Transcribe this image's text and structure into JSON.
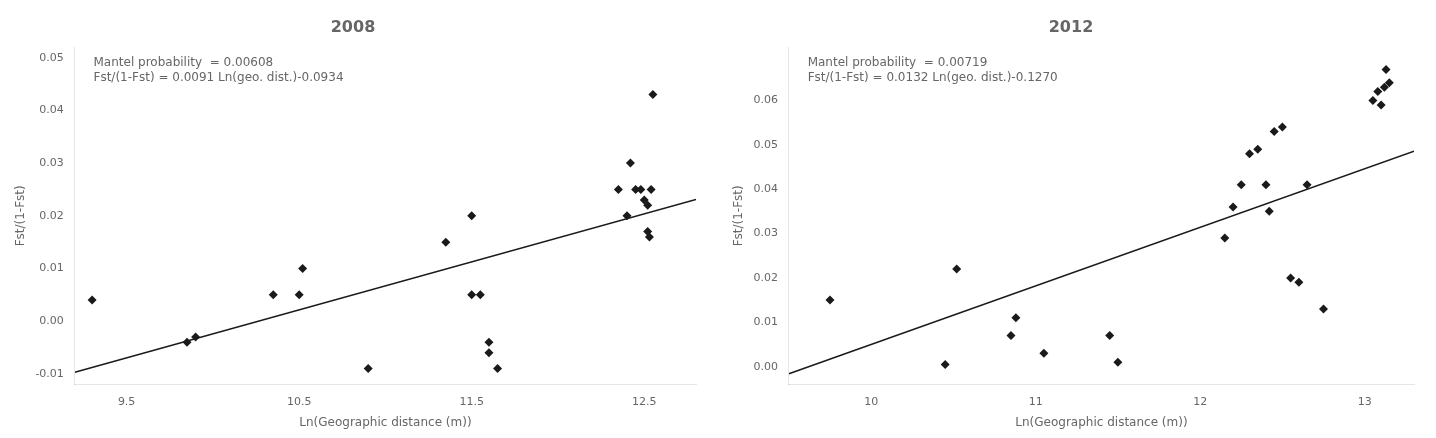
{
  "chart_data": [
    {
      "type": "scatter",
      "title": "2008",
      "xlabel": "Ln(Geographic distance (m))",
      "ylabel": "Fst/(1-Fst)",
      "annotations": [
        "Mantel probability  = 0.00608",
        "Fst/(1-Fst) = 0.0091 Ln(geo. dist.)-0.0934"
      ],
      "xlim": [
        9.2,
        12.8
      ],
      "ylim": [
        -0.012,
        0.052
      ],
      "xticks": [
        9.5,
        10.5,
        11.5,
        12.5
      ],
      "yticks": [
        -0.01,
        {
          "value": 0,
          "label": "0.00"
        },
        0.01,
        0.02,
        0.03,
        0.04,
        0.05
      ],
      "grid": false,
      "series": [
        {
          "type": "scatter",
          "color": "#1a1a1a",
          "marker": "diamond",
          "x": [
            9.3,
            9.85,
            9.9,
            10.35,
            10.5,
            10.52,
            10.9,
            11.35,
            11.5,
            11.5,
            11.55,
            11.6,
            11.6,
            11.65,
            12.35,
            12.4,
            12.42,
            12.45,
            12.48,
            12.5,
            12.52,
            12.52,
            12.53,
            12.54,
            12.55
          ],
          "values": [
            0.004,
            -0.004,
            -0.003,
            0.005,
            0.005,
            0.01,
            -0.009,
            0.015,
            0.02,
            0.005,
            0.005,
            -0.004,
            -0.006,
            -0.009,
            0.025,
            0.02,
            0.03,
            0.025,
            0.025,
            0.023,
            0.022,
            0.017,
            0.016,
            0.025,
            0.043
          ]
        },
        {
          "type": "line",
          "color": "#1a1a1a",
          "line_style": "solid",
          "x": [
            9.2,
            12.8
          ],
          "values": [
            -0.00968,
            0.02308
          ]
        }
      ]
    },
    {
      "type": "scatter",
      "title": "2012",
      "xlabel": "Ln(Geographic distance (m))",
      "ylabel": "Fst/(1-Fst)",
      "annotations": [
        "Mantel probability  = 0.00719",
        "Fst/(1-Fst) = 0.0132 Ln(geo. dist.)-0.1270"
      ],
      "xlim": [
        9.5,
        13.3
      ],
      "ylim": [
        -0.004,
        0.072
      ],
      "xticks": [
        10,
        11,
        12,
        13
      ],
      "yticks": [
        {
          "value": 0,
          "label": "0.00"
        },
        0.01,
        0.02,
        0.03,
        0.04,
        0.05,
        0.06
      ],
      "grid": false,
      "series": [
        {
          "type": "scatter",
          "color": "#1a1a1a",
          "marker": "diamond",
          "x": [
            9.75,
            10.45,
            10.52,
            10.85,
            10.88,
            11.05,
            11.45,
            11.5,
            12.15,
            12.2,
            12.25,
            12.3,
            12.35,
            12.4,
            12.42,
            12.45,
            12.5,
            12.55,
            12.6,
            12.65,
            12.75,
            13.05,
            13.08,
            13.1,
            13.12,
            13.13,
            13.15
          ],
          "values": [
            0.015,
            0.0005,
            0.022,
            0.007,
            0.011,
            0.003,
            0.007,
            0.001,
            0.029,
            0.036,
            0.041,
            0.048,
            0.049,
            0.041,
            0.035,
            0.053,
            0.054,
            0.02,
            0.019,
            0.041,
            0.013,
            0.06,
            0.062,
            0.059,
            0.063,
            0.067,
            0.064
          ]
        },
        {
          "type": "line",
          "color": "#1a1a1a",
          "line_style": "solid",
          "x": [
            9.5,
            13.3
          ],
          "values": [
            -0.0016,
            0.04856
          ]
        }
      ]
    }
  ]
}
